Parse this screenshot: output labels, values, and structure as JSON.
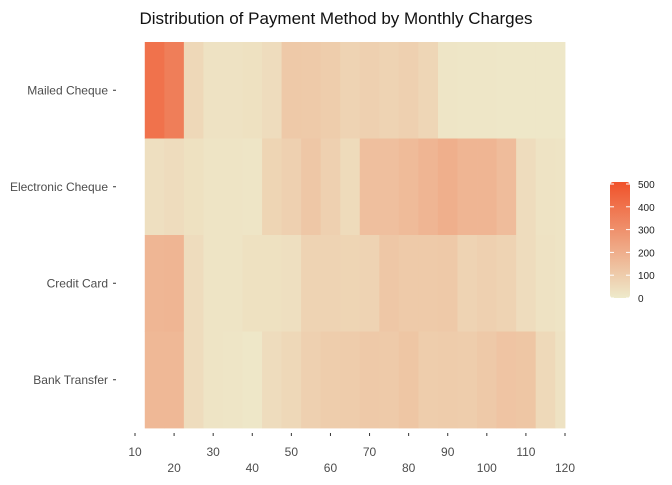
{
  "chart_data": {
    "type": "heatmap",
    "title": "Distribution of Payment Method by Monthly Charges",
    "xlabel": "",
    "ylabel": "",
    "grid": false,
    "x_range": [
      10,
      120
    ],
    "x_ticks_row1": [
      10,
      30,
      50,
      70,
      90,
      110
    ],
    "x_ticks_row2": [
      20,
      40,
      60,
      80,
      100,
      120
    ],
    "x_bins": [
      15,
      20,
      25,
      30,
      35,
      40,
      45,
      50,
      55,
      60,
      65,
      70,
      75,
      80,
      85,
      90,
      95,
      100,
      105,
      110,
      115,
      120
    ],
    "bin_width": 5,
    "y_categories": [
      "Bank Transfer",
      "Credit Card",
      "Electronic Cheque",
      "Mailed Cheque"
    ],
    "values": {
      "Mailed Cheque": [
        395,
        355,
        60,
        25,
        25,
        30,
        45,
        110,
        105,
        95,
        75,
        85,
        75,
        85,
        65,
        15,
        12,
        12,
        10,
        10,
        10,
        10
      ],
      "Electronic Cheque": [
        35,
        45,
        30,
        20,
        20,
        15,
        70,
        85,
        115,
        85,
        50,
        140,
        140,
        155,
        175,
        195,
        175,
        175,
        150,
        45,
        22,
        20
      ],
      "Credit Card": [
        170,
        175,
        45,
        20,
        20,
        30,
        30,
        35,
        75,
        75,
        70,
        75,
        115,
        105,
        105,
        110,
        75,
        85,
        75,
        45,
        25,
        20
      ],
      "Bank Transfer": [
        165,
        165,
        45,
        20,
        15,
        10,
        45,
        60,
        85,
        95,
        100,
        110,
        105,
        120,
        95,
        100,
        95,
        110,
        125,
        120,
        55,
        25
      ]
    },
    "color_scale": {
      "low": "#eeeacb",
      "high": "#f0522a",
      "min": 0,
      "max": 500
    },
    "legend": {
      "position": "right",
      "ticks": [
        0,
        100,
        200,
        300,
        400,
        500
      ]
    }
  }
}
